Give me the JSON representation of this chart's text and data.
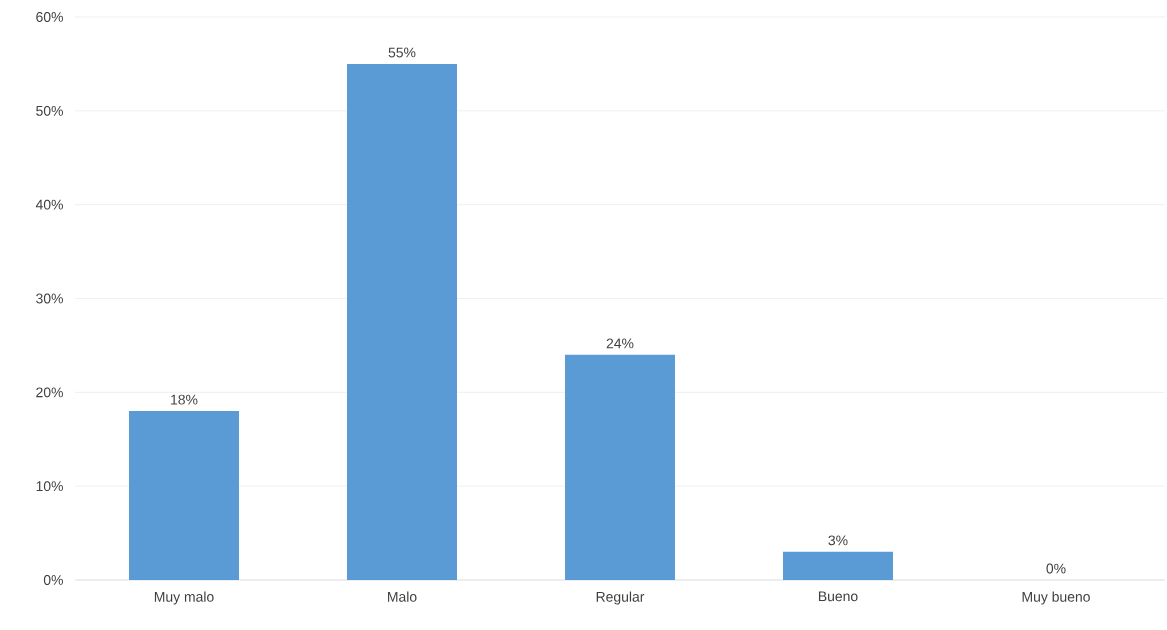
{
  "chart_data": {
    "type": "bar",
    "categories": [
      "Muy malo",
      "Malo",
      "Regular",
      "Bueno",
      "Muy bueno"
    ],
    "values": [
      18,
      55,
      24,
      3,
      0
    ],
    "color": "#5b9bd5",
    "ylim": [
      0,
      60
    ],
    "yticks": [
      {
        "value": 0,
        "label": "0%"
      },
      {
        "value": 10,
        "label": "10%"
      },
      {
        "value": 20,
        "label": "20%"
      },
      {
        "value": 30,
        "label": "30%"
      },
      {
        "value": 40,
        "label": "40%"
      },
      {
        "value": 50,
        "label": "50%"
      },
      {
        "value": 60,
        "label": "60%"
      }
    ],
    "value_labels": [
      "18%",
      "55%",
      "24%",
      "3%",
      "0%"
    ],
    "grid": "y",
    "legend": false
  }
}
